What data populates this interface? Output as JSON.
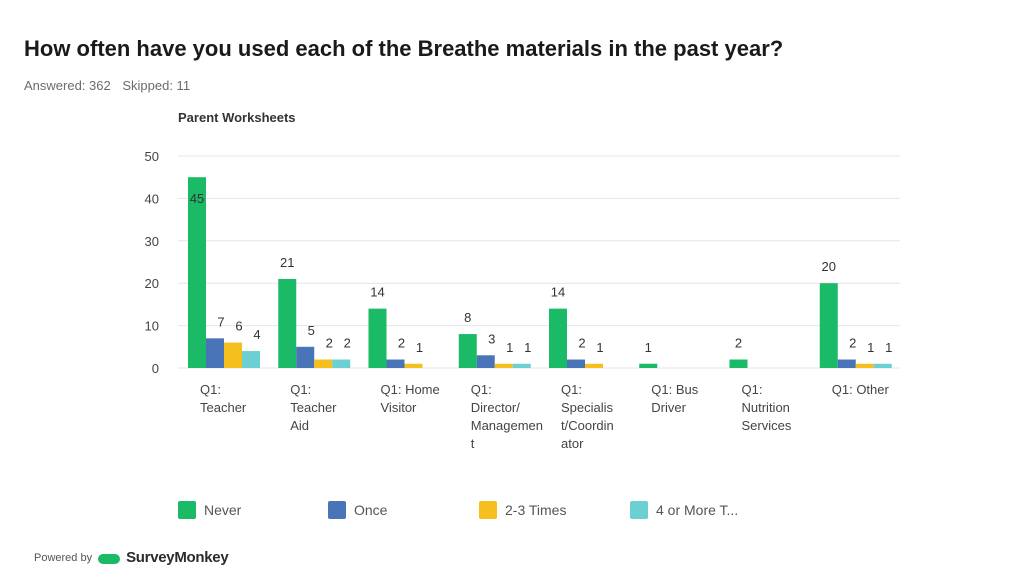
{
  "page": {
    "title": "How often have you used each of the Breathe materials in the past year?",
    "answered": "Answered: 362",
    "skipped": "Skipped: 11"
  },
  "footer": {
    "powered_by": "Powered by",
    "brand": "SurveyMonkey"
  },
  "chart_data": {
    "type": "bar",
    "title": "Parent Worksheets",
    "ylim": [
      0,
      50
    ],
    "yticks": [
      0,
      10,
      20,
      30,
      40,
      50
    ],
    "grid": true,
    "legend_position": "bottom",
    "categories": [
      [
        "Q1:",
        "Teacher"
      ],
      [
        "Q1:",
        "Teacher",
        "Aid"
      ],
      [
        "Q1: Home",
        "Visitor"
      ],
      [
        "Q1:",
        "Director/",
        "Managemen",
        "t"
      ],
      [
        "Q1:",
        "Specialis",
        "t/Coordin",
        "ator"
      ],
      [
        "Q1: Bus",
        "Driver"
      ],
      [
        "Q1:",
        "Nutrition",
        "Services"
      ],
      [
        "Q1: Other"
      ]
    ],
    "series": [
      {
        "name": "Never",
        "color": "#1aba66",
        "values": [
          45,
          21,
          14,
          8,
          14,
          1,
          2,
          20
        ]
      },
      {
        "name": "Once",
        "color": "#4a74b8",
        "values": [
          7,
          5,
          2,
          3,
          2,
          null,
          null,
          2
        ]
      },
      {
        "name": "2-3 Times",
        "color": "#f5bf1e",
        "values": [
          6,
          2,
          1,
          1,
          1,
          null,
          null,
          1
        ]
      },
      {
        "name": "4 or More T...",
        "color": "#6ccfd2",
        "values": [
          4,
          2,
          null,
          1,
          null,
          null,
          null,
          1
        ]
      }
    ]
  }
}
